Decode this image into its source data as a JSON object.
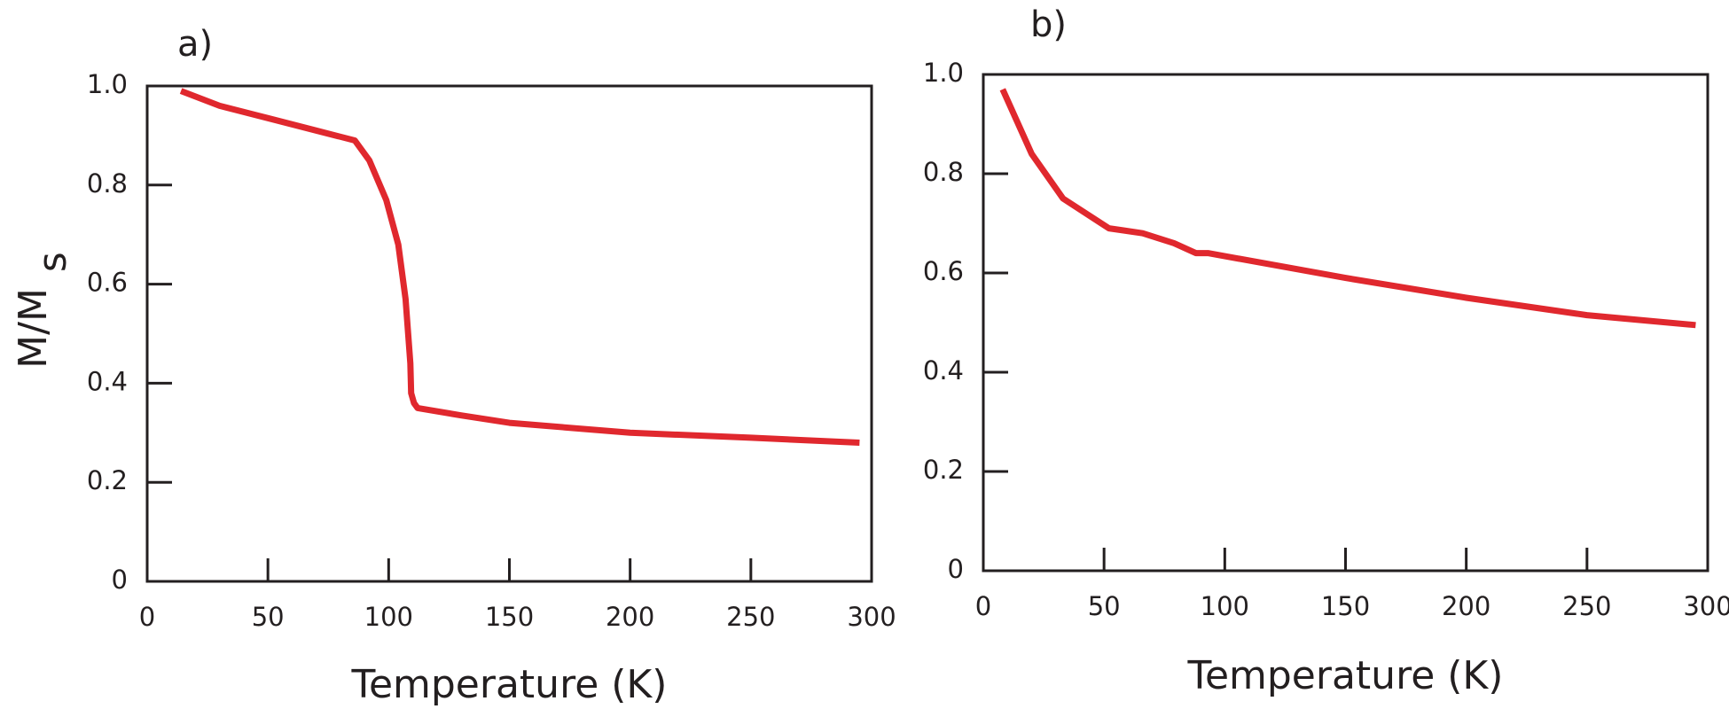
{
  "chart_data": [
    {
      "type": "line",
      "title": "a)",
      "xlabel": "Temperature (K)",
      "ylabel": "M/M",
      "ylabel_subscript": "s",
      "x": [
        14,
        30,
        50,
        70,
        86,
        92,
        99,
        104,
        107,
        109,
        109.3,
        110.5,
        112,
        130,
        150,
        200,
        250,
        295
      ],
      "series": [
        {
          "color": "#e0282e",
          "values": [
            0.99,
            0.96,
            0.935,
            0.91,
            0.89,
            0.85,
            0.77,
            0.68,
            0.57,
            0.44,
            0.38,
            0.36,
            0.35,
            0.335,
            0.32,
            0.3,
            0.29,
            0.28
          ]
        }
      ],
      "xlim": [
        0,
        300
      ],
      "ylim": [
        0,
        1
      ],
      "xticks": [
        0,
        50,
        100,
        150,
        200,
        250,
        300
      ],
      "yticks": [
        0,
        0.2,
        0.4,
        0.6,
        0.8,
        {
          "value": 1,
          "label": "1.0"
        }
      ]
    },
    {
      "type": "line",
      "title": "b)",
      "xlabel": "Temperature (K)",
      "x": [
        8,
        20,
        33,
        52,
        66,
        79,
        88,
        93,
        150,
        200,
        250,
        295
      ],
      "series": [
        {
          "color": "#e0282e",
          "values": [
            0.97,
            0.84,
            0.75,
            0.69,
            0.68,
            0.66,
            0.64,
            0.64,
            0.59,
            0.55,
            0.515,
            0.495
          ]
        }
      ],
      "xlim": [
        0,
        300
      ],
      "ylim": [
        0,
        1
      ],
      "xticks": [
        0,
        50,
        100,
        150,
        200,
        250,
        300
      ],
      "yticks": [
        0,
        0.2,
        0.4,
        0.6,
        0.8,
        {
          "value": 1,
          "label": "1.0"
        }
      ]
    }
  ]
}
